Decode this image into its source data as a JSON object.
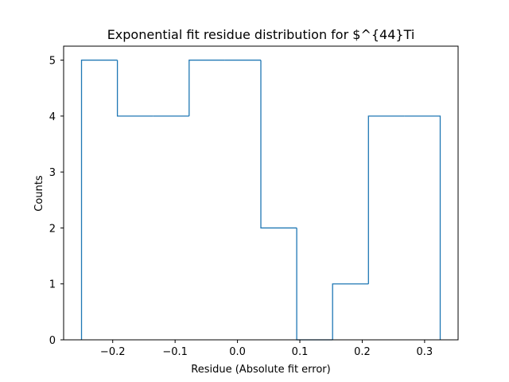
{
  "chart_data": {
    "type": "histogram",
    "title": "Exponential fit residue distribution for $^{44}Ti",
    "xlabel": "Residue (Absolute fit error)",
    "ylabel": "Counts",
    "bin_edges": [
      -0.25,
      -0.1925,
      -0.135,
      -0.0775,
      -0.02,
      0.0375,
      0.095,
      0.1525,
      0.21,
      0.2675,
      0.325
    ],
    "counts": [
      5,
      4,
      4,
      5,
      5,
      2,
      0,
      1,
      4,
      4
    ],
    "xlim": [
      -0.2787,
      0.3537
    ],
    "ylim": [
      0,
      5.25
    ],
    "xticks": [
      -0.2,
      -0.1,
      0.0,
      0.1,
      0.2,
      0.3
    ],
    "xtick_labels": [
      "−0.2",
      "−0.1",
      "0.0",
      "0.1",
      "0.2",
      "0.3"
    ],
    "yticks": [
      0,
      1,
      2,
      3,
      4,
      5
    ],
    "ytick_labels": [
      "0",
      "1",
      "2",
      "3",
      "4",
      "5"
    ],
    "histtype": "step",
    "line_color": "#1f77b4",
    "grid": false
  }
}
